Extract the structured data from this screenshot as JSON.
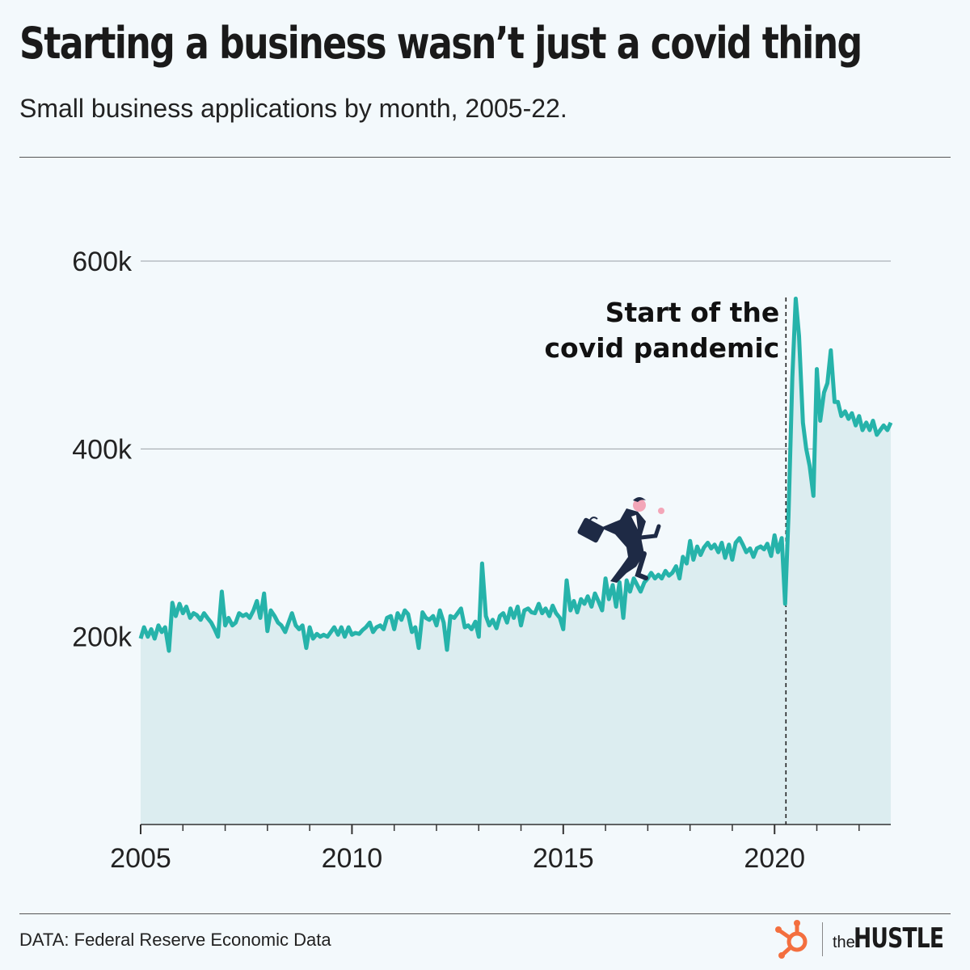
{
  "header": {
    "title": "Starting a business wasn’t just a covid thing",
    "subtitle": "Small business applications by month, 2005-22."
  },
  "footer": {
    "source": "DATA: Federal Reserve Economic Data",
    "brand_the": "the",
    "brand_name": "HUSTLE"
  },
  "colors": {
    "line": "#26b3aa",
    "area": "#dcedf0",
    "background": "#f3f9fc",
    "brand_orange": "#f36f3f"
  },
  "icons": [
    "running-businesswoman-icon",
    "hubspot-sprocket-icon"
  ],
  "chart_data": {
    "type": "area",
    "xlabel": "",
    "ylabel": "",
    "ylim": [
      0,
      600000
    ],
    "xlim": [
      2005,
      2022.75
    ],
    "y_ticks": [
      200000,
      400000,
      600000
    ],
    "y_tick_labels": [
      "200k",
      "400k",
      "600k"
    ],
    "x_ticks": [
      2005,
      2010,
      2015,
      2020
    ],
    "x_tick_labels": [
      "2005",
      "2010",
      "2015",
      "2020"
    ],
    "grid": true,
    "annotation": {
      "x": 2020.25,
      "lines": [
        "Start of the",
        "covid pandemic"
      ]
    },
    "series": [
      {
        "x": [
          2005.0,
          2005.08,
          2005.17,
          2005.25,
          2005.33,
          2005.42,
          2005.5,
          2005.58,
          2005.67,
          2005.75,
          2005.83,
          2005.92,
          2006.0,
          2006.08,
          2006.17,
          2006.25,
          2006.33,
          2006.42,
          2006.5,
          2006.58,
          2006.67,
          2006.75,
          2006.83,
          2006.92,
          2007.0,
          2007.08,
          2007.17,
          2007.25,
          2007.33,
          2007.42,
          2007.5,
          2007.58,
          2007.67,
          2007.75,
          2007.83,
          2007.92,
          2008.0,
          2008.08,
          2008.17,
          2008.25,
          2008.33,
          2008.42,
          2008.5,
          2008.58,
          2008.67,
          2008.75,
          2008.83,
          2008.92,
          2009.0,
          2009.08,
          2009.17,
          2009.25,
          2009.33,
          2009.42,
          2009.5,
          2009.58,
          2009.67,
          2009.75,
          2009.83,
          2009.92,
          2010.0,
          2010.08,
          2010.17,
          2010.25,
          2010.33,
          2010.42,
          2010.5,
          2010.58,
          2010.67,
          2010.75,
          2010.83,
          2010.92,
          2011.0,
          2011.08,
          2011.17,
          2011.25,
          2011.33,
          2011.42,
          2011.5,
          2011.58,
          2011.67,
          2011.75,
          2011.83,
          2011.92,
          2012.0,
          2012.08,
          2012.17,
          2012.25,
          2012.33,
          2012.42,
          2012.5,
          2012.58,
          2012.67,
          2012.75,
          2012.83,
          2012.92,
          2013.0,
          2013.08,
          2013.17,
          2013.25,
          2013.33,
          2013.42,
          2013.5,
          2013.58,
          2013.67,
          2013.75,
          2013.83,
          2013.92,
          2014.0,
          2014.08,
          2014.17,
          2014.25,
          2014.33,
          2014.42,
          2014.5,
          2014.58,
          2014.67,
          2014.75,
          2014.83,
          2014.92,
          2015.0,
          2015.08,
          2015.17,
          2015.25,
          2015.33,
          2015.42,
          2015.5,
          2015.58,
          2015.67,
          2015.75,
          2015.83,
          2015.92,
          2016.0,
          2016.08,
          2016.17,
          2016.25,
          2016.33,
          2016.42,
          2016.5,
          2016.58,
          2016.67,
          2016.75,
          2016.83,
          2016.92,
          2017.0,
          2017.08,
          2017.17,
          2017.25,
          2017.33,
          2017.42,
          2017.5,
          2017.58,
          2017.67,
          2017.75,
          2017.83,
          2017.92,
          2018.0,
          2018.08,
          2018.17,
          2018.25,
          2018.33,
          2018.42,
          2018.5,
          2018.58,
          2018.67,
          2018.75,
          2018.83,
          2018.92,
          2019.0,
          2019.08,
          2019.17,
          2019.25,
          2019.33,
          2019.42,
          2019.5,
          2019.58,
          2019.67,
          2019.75,
          2019.83,
          2019.92,
          2020.0,
          2020.08,
          2020.17,
          2020.25,
          2020.33,
          2020.42,
          2020.5,
          2020.58,
          2020.67,
          2020.75,
          2020.83,
          2020.92,
          2021.0,
          2021.08,
          2021.17,
          2021.25,
          2021.33,
          2021.42,
          2021.5,
          2021.58,
          2021.67,
          2021.75,
          2021.83,
          2021.92,
          2022.0,
          2022.08,
          2022.17,
          2022.25,
          2022.33,
          2022.42,
          2022.5,
          2022.58,
          2022.67,
          2022.75
        ],
        "y": [
          198000,
          210000,
          200000,
          208000,
          198000,
          212000,
          205000,
          210000,
          185000,
          236000,
          222000,
          235000,
          225000,
          232000,
          220000,
          225000,
          223000,
          218000,
          225000,
          220000,
          215000,
          208000,
          200000,
          248000,
          212000,
          220000,
          212000,
          215000,
          225000,
          222000,
          224000,
          220000,
          228000,
          238000,
          220000,
          246000,
          206000,
          228000,
          222000,
          215000,
          212000,
          205000,
          215000,
          225000,
          212000,
          208000,
          212000,
          188000,
          210000,
          198000,
          203000,
          200000,
          202000,
          200000,
          205000,
          210000,
          202000,
          210000,
          200000,
          210000,
          202000,
          204000,
          203000,
          207000,
          210000,
          215000,
          205000,
          210000,
          212000,
          208000,
          220000,
          222000,
          208000,
          225000,
          218000,
          228000,
          224000,
          205000,
          210000,
          188000,
          226000,
          220000,
          218000,
          222000,
          212000,
          228000,
          215000,
          186000,
          222000,
          220000,
          225000,
          230000,
          210000,
          212000,
          208000,
          216000,
          200000,
          278000,
          222000,
          212000,
          218000,
          209000,
          222000,
          225000,
          215000,
          230000,
          220000,
          232000,
          212000,
          228000,
          230000,
          226000,
          225000,
          235000,
          225000,
          230000,
          222000,
          233000,
          225000,
          220000,
          208000,
          260000,
          228000,
          238000,
          226000,
          240000,
          235000,
          243000,
          232000,
          246000,
          238000,
          228000,
          262000,
          240000,
          255000,
          232000,
          258000,
          220000,
          260000,
          248000,
          262000,
          255000,
          248000,
          258000,
          262000,
          268000,
          262000,
          266000,
          262000,
          270000,
          265000,
          268000,
          275000,
          262000,
          285000,
          278000,
          302000,
          282000,
          296000,
          287000,
          295000,
          300000,
          294000,
          298000,
          290000,
          300000,
          284000,
          298000,
          282000,
          300000,
          305000,
          298000,
          290000,
          294000,
          285000,
          294000,
          296000,
          293000,
          299000,
          286000,
          308000,
          290000,
          305000,
          235000,
          330000,
          476000,
          560000,
          520000,
          428000,
          400000,
          382000,
          350000,
          485000,
          430000,
          460000,
          470000,
          505000,
          450000,
          450000,
          435000,
          440000,
          432000,
          438000,
          425000,
          435000,
          420000,
          428000,
          420000,
          430000,
          415000,
          420000,
          425000,
          420000,
          428000
        ]
      }
    ]
  }
}
